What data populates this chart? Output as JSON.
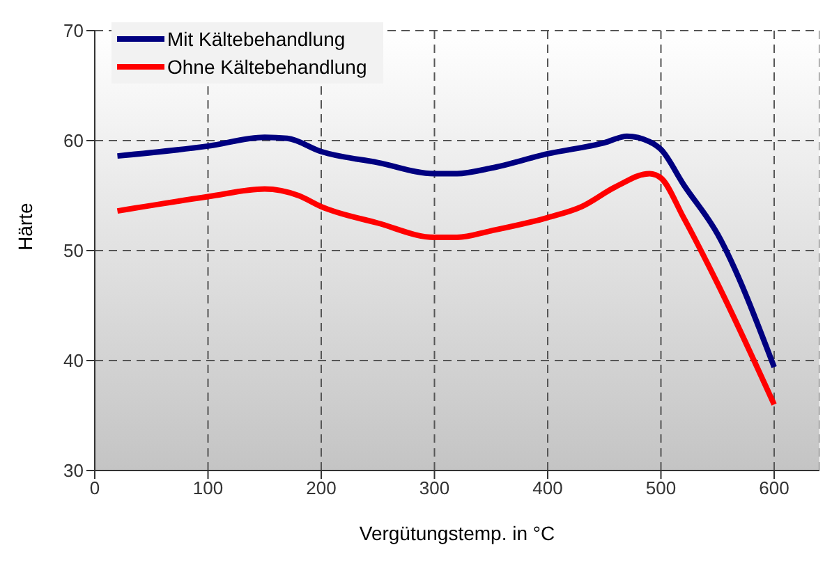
{
  "chart_data": {
    "type": "line",
    "xlabel": "Vergütungstemp. in °C",
    "ylabel": "Härte",
    "xlim": [
      0,
      640
    ],
    "xticks": [
      0,
      100,
      200,
      300,
      400,
      500,
      600
    ],
    "ylim": [
      30,
      70
    ],
    "yticks": [
      30,
      40,
      50,
      60,
      70
    ],
    "grid": true,
    "line_style": "solid",
    "marker": "none",
    "legend": "top left",
    "series": [
      {
        "name": "Mit Kältebehandlung",
        "color": "#000080",
        "x": [
          20,
          100,
          150,
          170,
          200,
          250,
          300,
          320,
          350,
          400,
          450,
          470,
          490,
          500,
          520,
          550,
          600
        ],
        "values": [
          58.6,
          59.5,
          60.3,
          60.2,
          59,
          58,
          57,
          57,
          57.5,
          58.8,
          59.8,
          60.4,
          59.9,
          59.2,
          56,
          51.5,
          39.4
        ]
      },
      {
        "name": "Ohne Kältebehandlung",
        "color": "#ff0000",
        "x": [
          20,
          100,
          150,
          180,
          200,
          250,
          300,
          320,
          350,
          400,
          430,
          460,
          490,
          500,
          520,
          550,
          600
        ],
        "values": [
          53.6,
          54.9,
          55.6,
          55,
          54,
          52.5,
          51.2,
          51.2,
          51.8,
          53,
          54,
          55.8,
          57,
          56.6,
          53,
          47,
          36
        ]
      }
    ]
  }
}
